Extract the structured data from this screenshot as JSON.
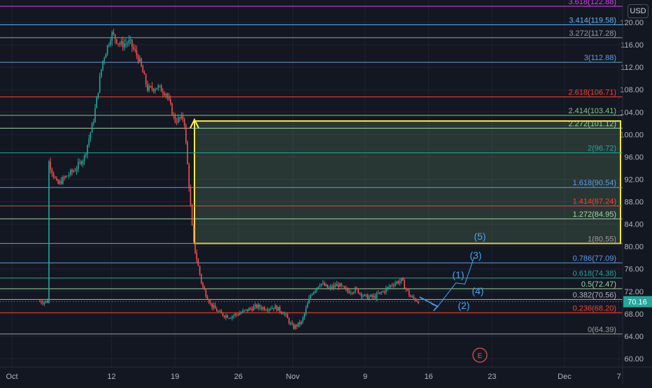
{
  "currency_label": "USD",
  "colors": {
    "background": "#131722",
    "grid": "#1f2330",
    "candle_up": "#26a69a",
    "candle_down": "#ef5350",
    "target_box": "#ffeb3b",
    "wave_label": "#42a5f5",
    "last_price_badge": "#26a69a"
  },
  "chart_data": {
    "type": "candlestick",
    "x_tick_labels": [
      "Oct",
      "12",
      "19",
      "26",
      "Nov",
      "9",
      "16",
      "23",
      "Dec",
      "7"
    ],
    "y_tick_labels": [
      "120.00",
      "116.00",
      "112.00",
      "108.00",
      "104.00",
      "100.00",
      "96.00",
      "92.00",
      "88.00",
      "84.00",
      "80.00",
      "76.00",
      "72.00",
      "68.00",
      "64.00",
      "60.00"
    ],
    "y_range": [
      58.5,
      124
    ],
    "grid": true,
    "last_price": "70.16",
    "price_path": [
      [
        "Oct 5",
        95.5
      ],
      [
        "Oct 6",
        91.0
      ],
      [
        "Oct 7",
        92.5
      ],
      [
        "Oct 8",
        93.8
      ],
      [
        "Oct 9",
        96.0
      ],
      [
        "Oct 10",
        102.5
      ],
      [
        "Oct 11",
        113.0
      ],
      [
        "Oct 12",
        118.0
      ],
      [
        "Oct 13",
        116.0
      ],
      [
        "Oct 14",
        116.5
      ],
      [
        "Oct 15",
        113.5
      ],
      [
        "Oct 16",
        108.0
      ],
      [
        "Oct 17",
        108.5
      ],
      [
        "Oct 18",
        107.5
      ],
      [
        "Oct 19",
        102.5
      ],
      [
        "Oct 20",
        103.0
      ],
      [
        "Oct 21",
        81.0
      ],
      [
        "Oct 22",
        73.0
      ],
      [
        "Oct 23",
        69.5
      ],
      [
        "Oct 24",
        68.0
      ],
      [
        "Oct 25",
        67.5
      ],
      [
        "Oct 26",
        68.0
      ],
      [
        "Oct 27",
        68.7
      ],
      [
        "Oct 28",
        69.3
      ],
      [
        "Oct 29",
        69.0
      ],
      [
        "Oct 30",
        69.2
      ],
      [
        "Oct 31",
        68.2
      ],
      [
        "Nov 1",
        65.5
      ],
      [
        "Nov 2",
        66.5
      ],
      [
        "Nov 3",
        71.5
      ],
      [
        "Nov 4",
        73.5
      ],
      [
        "Nov 5",
        72.5
      ],
      [
        "Nov 6",
        73.2
      ],
      [
        "Nov 7",
        72.0
      ],
      [
        "Nov 8",
        72.3
      ],
      [
        "Nov 9",
        71.0
      ],
      [
        "Nov 10",
        71.0
      ],
      [
        "Nov 11",
        72.0
      ],
      [
        "Nov 12",
        73.3
      ],
      [
        "Nov 13",
        74.0
      ],
      [
        "Nov 14",
        71.0
      ],
      [
        "Nov 15",
        70.2
      ]
    ],
    "fib_levels": [
      {
        "label": "3.618(122.88)",
        "price": 122.88,
        "color": "#e040fb"
      },
      {
        "label": "3.414(119.58)",
        "price": 119.58,
        "color": "#64b5f6"
      },
      {
        "label": "3.272(117.28)",
        "price": 117.28,
        "color": "#9e9e9e"
      },
      {
        "label": "3(112.88)",
        "price": 112.88,
        "color": "#5c9fe6"
      },
      {
        "label": "2.618(106.71)",
        "price": 106.71,
        "color": "#f44336"
      },
      {
        "label": "2.414(103.41)",
        "price": 103.41,
        "color": "#81c784"
      },
      {
        "label": "2.272(101.12)",
        "price": 101.12,
        "color": "#a5d6a7"
      },
      {
        "label": "2(96.72)",
        "price": 96.72,
        "color": "#26a69a"
      },
      {
        "label": "1.618(90.54)",
        "price": 90.54,
        "color": "#5c9fe6"
      },
      {
        "label": "1.414(87.24)",
        "price": 87.24,
        "color": "#f44336"
      },
      {
        "label": "1.272(84.95)",
        "price": 84.95,
        "color": "#a5d6a7"
      },
      {
        "label": "1(80.55)",
        "price": 80.55,
        "color": "#9e9e9e"
      },
      {
        "label": "0.786(77.09)",
        "price": 77.09,
        "color": "#5c9fe6"
      },
      {
        "label": "0.618(74.38)",
        "price": 74.38,
        "color": "#26a69a"
      },
      {
        "label": "0.5(72.47)",
        "price": 72.47,
        "color": "#a5d6a7"
      },
      {
        "label": "0.382(70.56)",
        "price": 70.56,
        "color": "#b2b5be"
      },
      {
        "label": "0.236(68.20)",
        "price": 68.2,
        "color": "#f44336"
      },
      {
        "label": "0(64.39)",
        "price": 64.39,
        "color": "#9e9e9e"
      }
    ],
    "target_zone": {
      "from_date": "Oct 21",
      "price_low": 80.55,
      "price_high": 102.4
    },
    "wave_labels": [
      "(1)",
      "(2)",
      "(3)",
      "(4)",
      "(5)"
    ],
    "wave_projection": [
      [
        "Nov 15",
        71.0
      ],
      [
        "Nov 17",
        69.3
      ],
      [
        "Nov 19",
        73.5
      ],
      [
        "Nov 20",
        73.3
      ],
      [
        "Nov 21",
        78.0
      ]
    ],
    "event_marker": "E"
  }
}
